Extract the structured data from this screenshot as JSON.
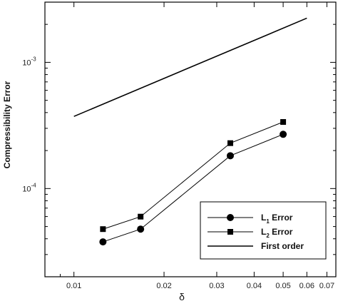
{
  "chart_data": {
    "type": "line",
    "title": "",
    "xlabel": "δ",
    "ylabel": "Compressibility Error",
    "x_scale": "log",
    "y_scale": "log",
    "xlim": [
      0.008,
      0.075
    ],
    "ylim": [
      2e-05,
      0.003
    ],
    "grid": false,
    "legend_position": "bottom-right",
    "x_ticks": [
      0.01,
      0.02,
      0.03,
      0.04,
      0.05,
      0.06,
      0.07
    ],
    "x_tick_labels": [
      "0.01",
      "0.02",
      "0.03",
      "0.04",
      "0.05",
      "0.06",
      "0.07"
    ],
    "y_major_ticks": [
      0.0001,
      0.001
    ],
    "y_tick_labels": [
      {
        "base": "10",
        "exp": "-4"
      },
      {
        "base": "10",
        "exp": "-3"
      }
    ],
    "series": [
      {
        "name": "L1 Error",
        "legend_main": "L",
        "legend_sub": "1",
        "legend_rest": " Error",
        "marker": "circle",
        "color": "#000000",
        "x": [
          0.0125,
          0.0167,
          0.0333,
          0.05
        ],
        "y": [
          3.78e-05,
          4.77e-05,
          0.000182,
          0.000269
        ]
      },
      {
        "name": "L2 Error",
        "legend_main": "L",
        "legend_sub": "2",
        "legend_rest": " Error",
        "marker": "square",
        "color": "#000000",
        "x": [
          0.0125,
          0.0167,
          0.0333,
          0.05
        ],
        "y": [
          4.77e-05,
          5.99e-05,
          0.000229,
          0.000337
        ]
      },
      {
        "name": "First order",
        "legend_main": "First order",
        "legend_sub": "",
        "legend_rest": "",
        "marker": "none",
        "color": "#000000",
        "x": [
          0.01,
          0.06
        ],
        "y": [
          0.000373,
          0.00224
        ]
      }
    ]
  }
}
